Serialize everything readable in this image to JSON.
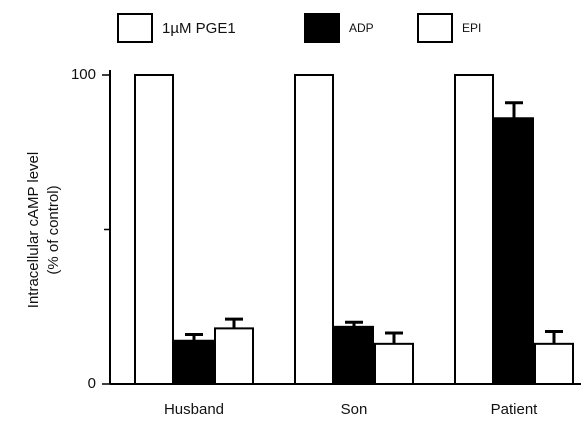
{
  "chart_data": {
    "type": "bar",
    "ylabel": [
      "Intracellular cAMP level",
      "(% of control)"
    ],
    "categories": [
      "Husband",
      "Son",
      "Patient"
    ],
    "series": [
      {
        "name": "1µM PGE1",
        "color": "#ffffff",
        "values": [
          100,
          100,
          100
        ]
      },
      {
        "name": "ADP",
        "color": "#000000",
        "values": [
          14,
          18.5,
          86
        ],
        "errors": [
          2,
          1.5,
          5
        ]
      },
      {
        "name": "EPI",
        "color": "#ffffff",
        "values": [
          18,
          13,
          13
        ],
        "errors": [
          3,
          3.5,
          4
        ]
      }
    ],
    "ylim": [
      0,
      100
    ],
    "yticks": [
      0,
      100
    ],
    "yminor_ticks": [
      50
    ]
  }
}
